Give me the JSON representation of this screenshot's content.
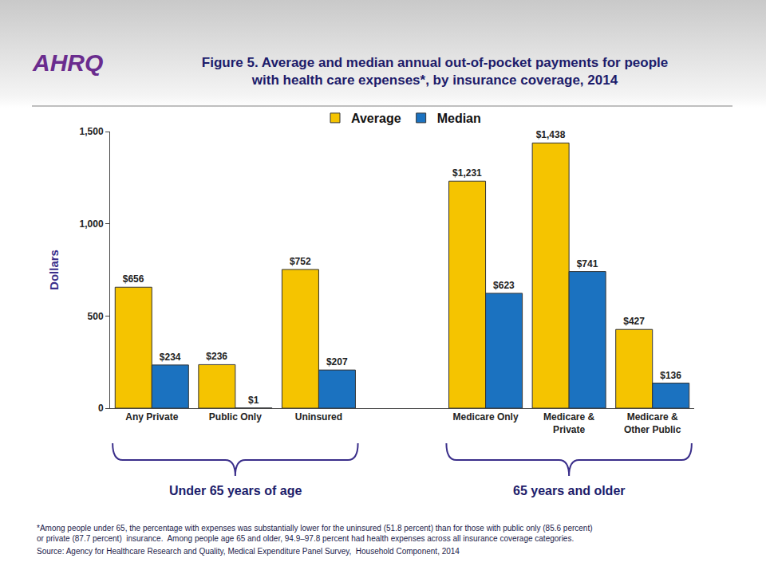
{
  "chart_data": {
    "type": "bar",
    "title": "Figure 5. Average and median annual out-of-pocket payments for people\nwith health care expenses*, by insurance coverage, 2014",
    "logo": "AHRQ",
    "y_label": "Dollars",
    "categories": [
      "Any Private",
      "Public Only",
      "Uninsured",
      null,
      "Medicare Only",
      "Medicare &\nPrivate",
      "Medicare &\nOther Public"
    ],
    "series": [
      {
        "name": "Average",
        "color": "#f5c400",
        "values": [
          656,
          236,
          752,
          null,
          1231,
          1438,
          427
        ],
        "value_labels": [
          "$656",
          "$236",
          "$752",
          null,
          "$1,231",
          "$1,438",
          "$427"
        ]
      },
      {
        "name": "Median",
        "color": "#1b72c0",
        "values": [
          234,
          1,
          207,
          null,
          623,
          741,
          136
        ],
        "value_labels": [
          "$234",
          "$1",
          "$207",
          null,
          "$623",
          "$741",
          "$136"
        ]
      }
    ],
    "ylim": [
      0,
      1500
    ],
    "yticks": [
      0,
      500,
      {
        "value": 1000,
        "label": "1,000"
      },
      {
        "value": 1500,
        "label": "1,500"
      }
    ],
    "grid": false,
    "legend": "top",
    "data_labels": true,
    "groups": [
      {
        "label": "Under 65 years of age",
        "categories": [
          "Any Private",
          "Public Only",
          "Uninsured"
        ]
      },
      {
        "label": "65 years and older",
        "categories": [
          "Medicare Only",
          "Medicare &\nPrivate",
          "Medicare &\nOther Public"
        ]
      }
    ],
    "footnote": "*Among people under 65, the percentage with expenses was substantially lower for the uninsured (51.8 percent) than for those with public only (85.6 percent)\nor private (87.7 percent)  insurance.  Among people age 65 and older, 94.9–97.8 percent had health expenses across all insurance coverage categories.",
    "source": "Source: Agency for Healthcare Research and Quality, Medical Expenditure Panel Survey,  Household Component, 2014"
  }
}
